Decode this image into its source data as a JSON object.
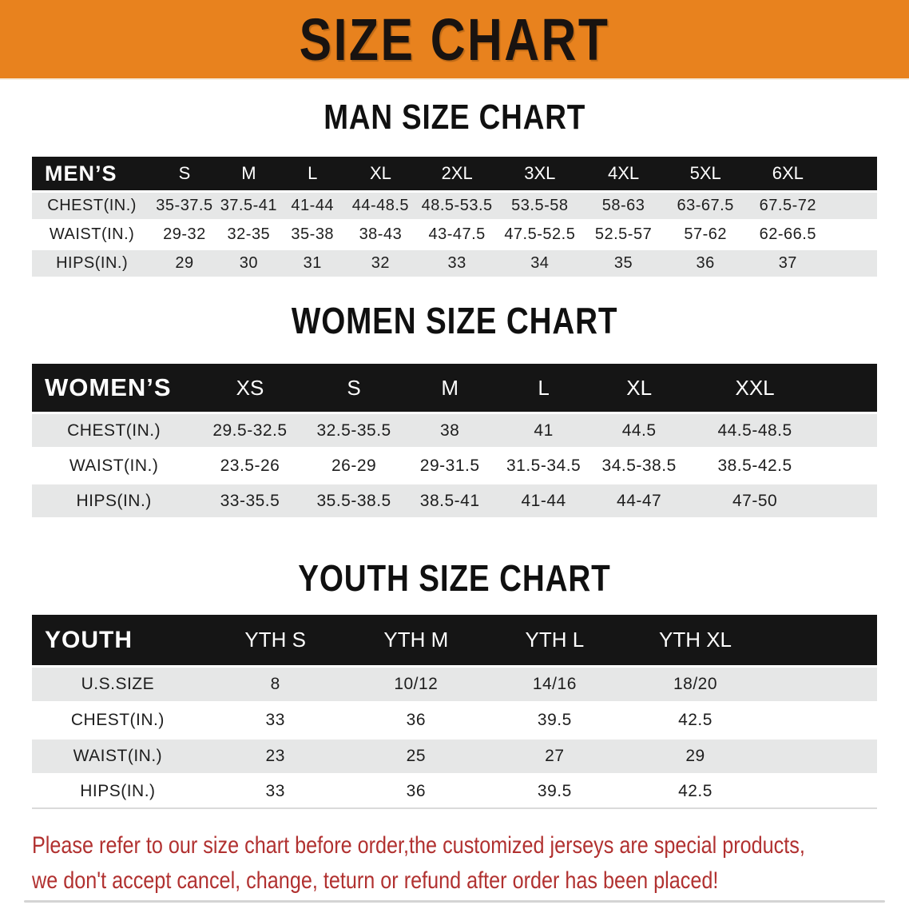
{
  "banner": {
    "title": "SIZE CHART"
  },
  "tables": [
    {
      "heading": "MAN SIZE CHART",
      "group_label": "MEN’S",
      "sizes": [
        "S",
        "M",
        "L",
        "XL",
        "2XL",
        "3XL",
        "4XL",
        "5XL",
        "6XL"
      ],
      "rows": [
        {
          "label": "CHEST(IN.)",
          "values": [
            "35-37.5",
            "37.5-41",
            "41-44",
            "44-48.5",
            "48.5-53.5",
            "53.5-58",
            "58-63",
            "63-67.5",
            "67.5-72"
          ]
        },
        {
          "label": "WAIST(IN.)",
          "values": [
            "29-32",
            "32-35",
            "35-38",
            "38-43",
            "43-47.5",
            "47.5-52.5",
            "52.5-57",
            "57-62",
            "62-66.5"
          ]
        },
        {
          "label": "HIPS(IN.)",
          "values": [
            "29",
            "30",
            "31",
            "32",
            "33",
            "34",
            "35",
            "36",
            "37"
          ]
        }
      ]
    },
    {
      "heading": "WOMEN SIZE CHART",
      "group_label": "WOMEN’S",
      "sizes": [
        "XS",
        "S",
        "M",
        "L",
        "XL",
        "XXL"
      ],
      "rows": [
        {
          "label": "CHEST(IN.)",
          "values": [
            "29.5-32.5",
            "32.5-35.5",
            "38",
            "41",
            "44.5",
            "44.5-48.5"
          ]
        },
        {
          "label": "WAIST(IN.)",
          "values": [
            "23.5-26",
            "26-29",
            "29-31.5",
            "31.5-34.5",
            "34.5-38.5",
            "38.5-42.5"
          ]
        },
        {
          "label": "HIPS(IN.)",
          "values": [
            "33-35.5",
            "35.5-38.5",
            "38.5-41",
            "41-44",
            "44-47",
            "47-50"
          ]
        }
      ]
    },
    {
      "heading": "YOUTH SIZE CHART",
      "group_label": "YOUTH",
      "sizes": [
        "YTH S",
        "YTH M",
        "YTH L",
        "YTH XL"
      ],
      "rows": [
        {
          "label": "U.S.SIZE",
          "values": [
            "8",
            "10/12",
            "14/16",
            "18/20"
          ]
        },
        {
          "label": "CHEST(IN.)",
          "values": [
            "33",
            "36",
            "39.5",
            "42.5"
          ]
        },
        {
          "label": "WAIST(IN.)",
          "values": [
            "23",
            "25",
            "27",
            "29"
          ]
        },
        {
          "label": "HIPS(IN.)",
          "values": [
            "33",
            "36",
            "39.5",
            "42.5"
          ]
        }
      ]
    }
  ],
  "footer": {
    "lines": [
      "Please refer to our size chart before order,the customized jerseys are special products,",
      "we don't accept cancel, change, teturn or refund after order has been placed!"
    ]
  },
  "colors": {
    "banner_bg": "#E8821E",
    "header_bar": "#151515",
    "row_stripe": "#E6E7E7",
    "disclaimer_red": "#B13130"
  }
}
